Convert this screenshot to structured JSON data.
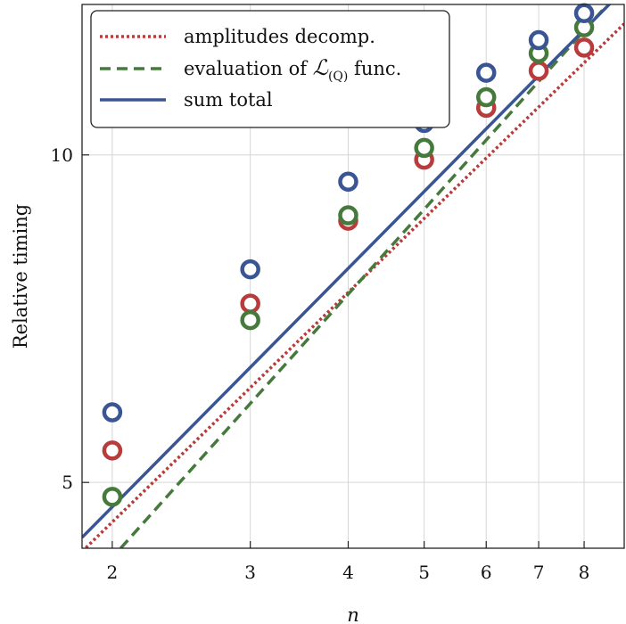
{
  "chart_data": {
    "type": "scatter",
    "xlabel": "n",
    "ylabel": "Relative timing",
    "xscale": "log",
    "yscale": "log",
    "xlim": [
      1.83,
      9.0
    ],
    "ylim": [
      4.35,
      13.75
    ],
    "xticks": [
      2,
      3,
      4,
      5,
      6,
      7,
      8
    ],
    "yticks": [
      5,
      10
    ],
    "grid": true,
    "legend_position": "top-left",
    "x": [
      2,
      3,
      4,
      5,
      6,
      7,
      8
    ],
    "series": [
      {
        "name": "amplitudes decomp.",
        "color": "#b83c3c",
        "line_style": "dotted",
        "points": [
          5.35,
          7.3,
          8.7,
          9.9,
          11.05,
          11.95,
          12.55
        ],
        "fit_line": {
          "x": [
            1.83,
            9.0
          ],
          "y": [
            4.32,
            13.2
          ]
        }
      },
      {
        "name": "evaluation of ℒ(Q) func.",
        "legend_main": "evaluation of ",
        "legend_script": "ℒ",
        "legend_sub": "(Q)",
        "legend_suffix": " func.",
        "color": "#467a3c",
        "line_style": "dashed",
        "points": [
          4.85,
          7.05,
          8.8,
          10.15,
          11.3,
          12.4,
          13.1
        ],
        "fit_line": {
          "x": [
            2.05,
            9.0
          ],
          "y": [
            4.35,
            14.3
          ]
        }
      },
      {
        "name": "sum total",
        "color": "#3a5594",
        "line_style": "solid",
        "points": [
          5.8,
          7.85,
          9.45,
          10.7,
          11.9,
          12.75,
          13.5
        ],
        "fit_line": {
          "x": [
            1.83,
            9.0
          ],
          "y": [
            4.45,
            14.2
          ]
        }
      }
    ]
  }
}
